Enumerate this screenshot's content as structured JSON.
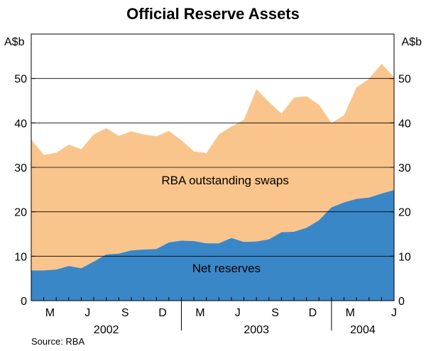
{
  "chart_data": {
    "type": "area",
    "stacked": true,
    "title": "Official Reserve Assets",
    "ylabel_left": "A$b",
    "ylabel_right": "A$b",
    "ylim": [
      0,
      60
    ],
    "yticks": [
      0,
      10,
      20,
      30,
      40,
      50
    ],
    "grid": "horizontal",
    "x_periods": 29,
    "month_ticks": [
      {
        "label": "M",
        "month_index": 2
      },
      {
        "label": "J",
        "month_index": 5
      },
      {
        "label": "S",
        "month_index": 8
      },
      {
        "label": "D",
        "month_index": 11
      },
      {
        "label": "M",
        "month_index": 14
      },
      {
        "label": "J",
        "month_index": 17
      },
      {
        "label": "S",
        "month_index": 20
      },
      {
        "label": "D",
        "month_index": 23
      },
      {
        "label": "M",
        "month_index": 26
      },
      {
        "label": "J",
        "month_index": 29
      }
    ],
    "year_labels": [
      {
        "label": "2002",
        "start": 0,
        "end": 12
      },
      {
        "label": "2003",
        "start": 12,
        "end": 24
      },
      {
        "label": "2004",
        "start": 24,
        "end": 29
      }
    ],
    "year_separators": [
      12,
      24
    ],
    "series": [
      {
        "name": "Net reserves",
        "color": "#3a87c8",
        "values": [
          6.8,
          6.8,
          7.0,
          7.8,
          7.3,
          8.8,
          10.4,
          10.6,
          11.3,
          11.5,
          11.6,
          13.1,
          13.5,
          13.4,
          12.9,
          12.9,
          14.1,
          13.2,
          13.3,
          13.8,
          15.4,
          15.5,
          16.4,
          18.1,
          21.0,
          22.1,
          22.9,
          23.2,
          24.1,
          24.9
        ]
      },
      {
        "name": "RBA outstanding swaps",
        "color": "#f9c58c",
        "values": [
          29.5,
          26.0,
          26.3,
          27.3,
          26.8,
          28.6,
          28.4,
          26.5,
          26.8,
          25.9,
          25.4,
          25.1,
          22.6,
          20.2,
          20.3,
          24.5,
          25.1,
          27.5,
          34.3,
          30.9,
          26.7,
          30.2,
          29.6,
          26.0,
          19.0,
          19.6,
          25.1,
          26.7,
          29.2,
          25.4
        ]
      }
    ],
    "annotations": [
      {
        "text": "RBA outstanding swaps",
        "series": "RBA outstanding swaps"
      },
      {
        "text": "Net reserves",
        "series": "Net reserves"
      }
    ],
    "source": "Source: RBA"
  }
}
